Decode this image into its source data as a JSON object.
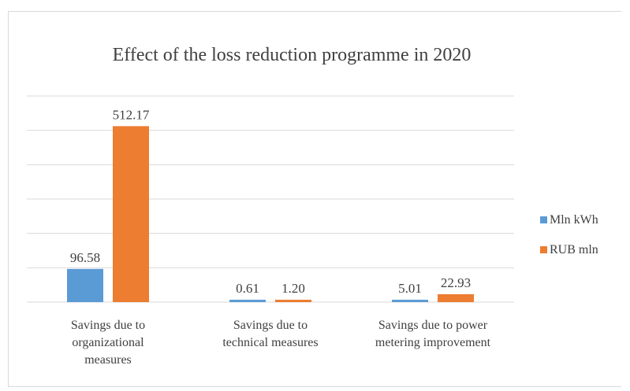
{
  "chart_data": {
    "type": "bar",
    "title": "Effect of the loss reduction programme in 2020",
    "categories": [
      [
        "Savings  due to",
        "organizational",
        "measures"
      ],
      [
        "Savings  due to",
        "technical  measures"
      ],
      [
        "Savings  due to power",
        "metering  improvement"
      ]
    ],
    "series": [
      {
        "name": "Mln kWh",
        "color": "#5b9bd5",
        "values": [
          96.58,
          0.61,
          5.01
        ],
        "labels": [
          "96.58",
          "0.61",
          "5.01"
        ]
      },
      {
        "name": "RUB mln",
        "color": "#ed7d31",
        "values": [
          512.17,
          1.2,
          22.93
        ],
        "labels": [
          "512.17",
          "1.20",
          "22.93"
        ]
      }
    ],
    "ylim": [
      0,
      600
    ],
    "grid": true,
    "legend": "right"
  }
}
